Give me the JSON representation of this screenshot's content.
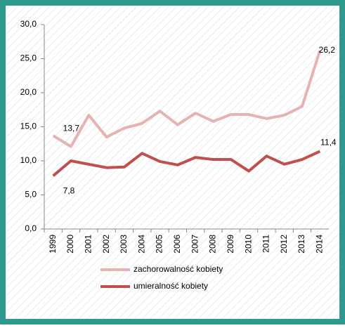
{
  "chart_data": {
    "type": "line",
    "categories": [
      "1999",
      "2000",
      "2001",
      "2002",
      "2003",
      "2004",
      "2005",
      "2006",
      "2007",
      "2008",
      "2009",
      "2010",
      "2011",
      "2012",
      "2013",
      "2014"
    ],
    "series": [
      {
        "name": "zachorowalność kobiety",
        "color": "#e6b3b3",
        "values": [
          13.7,
          12.1,
          16.7,
          13.5,
          14.8,
          15.5,
          17.3,
          15.3,
          17.0,
          15.8,
          16.8,
          16.8,
          16.2,
          16.7,
          18.0,
          26.2
        ],
        "value_labels": [
          "13,7",
          null,
          null,
          null,
          null,
          null,
          null,
          null,
          null,
          null,
          null,
          null,
          null,
          null,
          null,
          "26,2"
        ]
      },
      {
        "name": "umieralność kobiety",
        "color": "#c0504d",
        "values": [
          7.8,
          10.0,
          9.5,
          9.0,
          9.1,
          11.1,
          9.9,
          9.4,
          10.5,
          10.2,
          10.2,
          8.5,
          10.7,
          9.5,
          10.2,
          11.4
        ],
        "value_labels": [
          "7,8",
          null,
          null,
          null,
          null,
          null,
          null,
          null,
          null,
          null,
          null,
          null,
          null,
          null,
          null,
          "11,4"
        ]
      }
    ],
    "ylim": [
      0,
      30
    ],
    "yticks": [
      {
        "value": 0,
        "label": "0,0"
      },
      {
        "value": 5,
        "label": "5,0"
      },
      {
        "value": 10,
        "label": "10,0"
      },
      {
        "value": 15,
        "label": "15,0"
      },
      {
        "value": 20,
        "label": "20,0"
      },
      {
        "value": 25,
        "label": "25,0"
      },
      {
        "value": 30,
        "label": "30,0"
      }
    ],
    "grid": false,
    "legend": "bottom"
  }
}
